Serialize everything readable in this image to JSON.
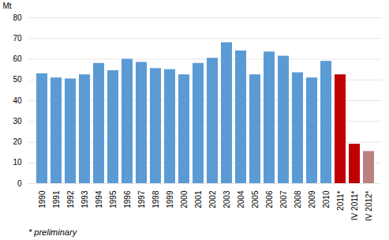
{
  "chart_data": {
    "type": "bar",
    "ylabel": "Mt",
    "annotations": [
      "* preliminary"
    ],
    "categories": [
      "1990",
      "1991",
      "1992",
      "1993",
      "1994",
      "1995",
      "1996",
      "1997",
      "1998",
      "1999",
      "2000",
      "2001",
      "2002",
      "2003",
      "2004",
      "2005",
      "2006",
      "2007",
      "2008",
      "2009",
      "2010",
      "2011*",
      "IV 2011*",
      "IV 2012*"
    ],
    "values": [
      53.0,
      51.0,
      50.5,
      52.5,
      58.0,
      54.5,
      60.0,
      58.5,
      55.5,
      55.0,
      52.5,
      58.0,
      60.5,
      68.0,
      64.0,
      52.5,
      63.5,
      61.5,
      53.5,
      51.0,
      59.0,
      52.5,
      19.0,
      15.5
    ],
    "colors": [
      "#5B9BD5",
      "#5B9BD5",
      "#5B9BD5",
      "#5B9BD5",
      "#5B9BD5",
      "#5B9BD5",
      "#5B9BD5",
      "#5B9BD5",
      "#5B9BD5",
      "#5B9BD5",
      "#5B9BD5",
      "#5B9BD5",
      "#5B9BD5",
      "#5B9BD5",
      "#5B9BD5",
      "#5B9BD5",
      "#5B9BD5",
      "#5B9BD5",
      "#5B9BD5",
      "#5B9BD5",
      "#5B9BD5",
      "#C00000",
      "#C00000",
      "#BC8080"
    ],
    "ylim": [
      0,
      80
    ],
    "yticks": [
      0,
      10,
      20,
      30,
      40,
      50,
      60,
      70,
      80
    ],
    "grid": true
  }
}
